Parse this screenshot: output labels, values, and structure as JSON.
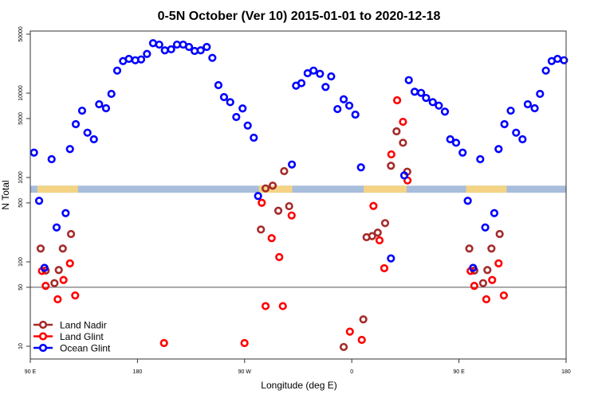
{
  "chart_data": {
    "type": "scatter",
    "title": "0-5N October (Ver 10)   2015-01-01 to 2020-12-18",
    "xlabel": "Longitude (deg E)",
    "ylabel": "N Total",
    "y_scale": "log",
    "ylim": [
      8,
      50000
    ],
    "x_range_deg": [
      "90E",
      "180",
      "90W",
      "0",
      "90E",
      "180"
    ],
    "x_ticks": [
      {
        "p": 90,
        "label": "90 E"
      },
      {
        "p": 180,
        "label": "180"
      },
      {
        "p": 270,
        "label": "90 W"
      },
      {
        "p": 360,
        "label": "0"
      },
      {
        "p": 450,
        "label": "90 E"
      },
      {
        "p": 540,
        "label": "180"
      }
    ],
    "y_ticks": [
      {
        "v": 10,
        "label": "10"
      },
      {
        "v": 50,
        "label": "50"
      },
      {
        "v": 100,
        "label": "100"
      },
      {
        "v": 500,
        "label": "500"
      },
      {
        "v": 1000,
        "label": "1000"
      },
      {
        "v": 5000,
        "label": "5000"
      },
      {
        "v": 10000,
        "label": "10000"
      },
      {
        "v": 50000,
        "label": "50000"
      }
    ],
    "reference_line": 50,
    "legend_position": "bottom-left",
    "land_longitude_ranges": [
      [
        96,
        130
      ],
      [
        -78,
        -50
      ],
      [
        10,
        46
      ]
    ],
    "land_strip_value_range": [
      660,
      800
    ],
    "colors": {
      "ocean_strip": "#a7bddb",
      "land_strip": "#fdd67a",
      "ref_line": "#555555"
    },
    "series": [
      {
        "name": "Land Nadir",
        "color": "#a52a2a",
        "points": [
          [
            124.2,
            214
          ],
          [
            98.7,
            144
          ],
          [
            117.3,
            144
          ],
          [
            113.9,
            80
          ],
          [
            110.3,
            56
          ],
          [
            102.9,
            79
          ],
          [
            -56.8,
            1189
          ],
          [
            -66.4,
            800
          ],
          [
            -72.4,
            743
          ],
          [
            -61.7,
            404
          ],
          [
            -52.6,
            457
          ],
          [
            -76.3,
            242
          ],
          [
            37.6,
            3525
          ],
          [
            43,
            2583
          ],
          [
            32.9,
            1377
          ],
          [
            46.6,
            1172
          ],
          [
            28,
            288
          ],
          [
            12.4,
            196
          ],
          [
            17.1,
            202
          ],
          [
            21.8,
            222
          ],
          [
            9.7,
            20.8
          ],
          [
            -6.8,
            9.8
          ]
        ]
      },
      {
        "name": "Land Glint",
        "color": "#ff0000",
        "points": [
          [
            99.8,
            78
          ],
          [
            102.9,
            52
          ],
          [
            117.9,
            61
          ],
          [
            123.3,
            96
          ],
          [
            113,
            36
          ],
          [
            127.7,
            40
          ],
          [
            -157.7,
            10.9
          ],
          [
            -90.1,
            10.9
          ],
          [
            -75.6,
            502
          ],
          [
            -50.5,
            355
          ],
          [
            -67.3,
            191
          ],
          [
            -60.9,
            114
          ],
          [
            -72.4,
            29.9
          ],
          [
            -57.9,
            29.9
          ],
          [
            38.1,
            8220
          ],
          [
            43,
            4570
          ],
          [
            33.2,
            1880
          ],
          [
            46.8,
            923
          ],
          [
            18.2,
            460
          ],
          [
            23.3,
            180
          ],
          [
            27.3,
            84
          ],
          [
            -1.6,
            14.9
          ],
          [
            8.4,
            11.9
          ]
        ]
      },
      {
        "name": "Ocean Glint",
        "color": "#0000ff",
        "points": [
          [
            93.1,
            1970
          ],
          [
            107.9,
            1648
          ],
          [
            123.3,
            2173
          ],
          [
            128.2,
            4285
          ],
          [
            133.5,
            6194
          ],
          [
            138,
            3397
          ],
          [
            143.4,
            2838
          ],
          [
            147.8,
            7380
          ],
          [
            153.6,
            6622
          ],
          [
            158.1,
            9797
          ],
          [
            163,
            18490
          ],
          [
            167.9,
            23990
          ],
          [
            172.8,
            25470
          ],
          [
            178.2,
            24540
          ],
          [
            -176.9,
            25080
          ],
          [
            -172,
            29170
          ],
          [
            -166.9,
            39080
          ],
          [
            -161.7,
            37580
          ],
          [
            -157,
            32140
          ],
          [
            -151.7,
            33060
          ],
          [
            -146.8,
            37580
          ],
          [
            -141.6,
            37580
          ],
          [
            -136.7,
            35230
          ],
          [
            -132,
            31620
          ],
          [
            -126.9,
            32140
          ],
          [
            -121.8,
            35230
          ],
          [
            -117.1,
            26180
          ],
          [
            -112,
            12420
          ],
          [
            -107.3,
            8970
          ],
          [
            -102.1,
            7820
          ],
          [
            -97,
            5210
          ],
          [
            -91.7,
            6580
          ],
          [
            -87.4,
            4130
          ],
          [
            -82.3,
            2965
          ],
          [
            -78.7,
            603
          ],
          [
            -50.3,
            1426
          ],
          [
            -46.8,
            12250
          ],
          [
            -42.3,
            13120
          ],
          [
            -37.1,
            17220
          ],
          [
            -32.1,
            18490
          ],
          [
            -26.7,
            16950
          ],
          [
            -22,
            11830
          ],
          [
            -17.3,
            15780
          ],
          [
            -12,
            6470
          ],
          [
            -6.8,
            8450
          ],
          [
            -2.1,
            7110
          ],
          [
            3,
            5560
          ],
          [
            7.7,
            1319
          ],
          [
            32.9,
            110
          ],
          [
            44.1,
            1059
          ],
          [
            47.9,
            14260
          ],
          [
            52.8,
            10380
          ],
          [
            58.2,
            10070
          ],
          [
            62.4,
            8770
          ],
          [
            68,
            7820
          ],
          [
            73.1,
            7110
          ],
          [
            78.2,
            6030
          ],
          [
            82.7,
            2838
          ],
          [
            87.6,
            2583
          ],
          [
            97.4,
            530
          ],
          [
            119.7,
            378
          ],
          [
            112.1,
            256
          ],
          [
            101.9,
            85
          ]
        ]
      }
    ]
  }
}
